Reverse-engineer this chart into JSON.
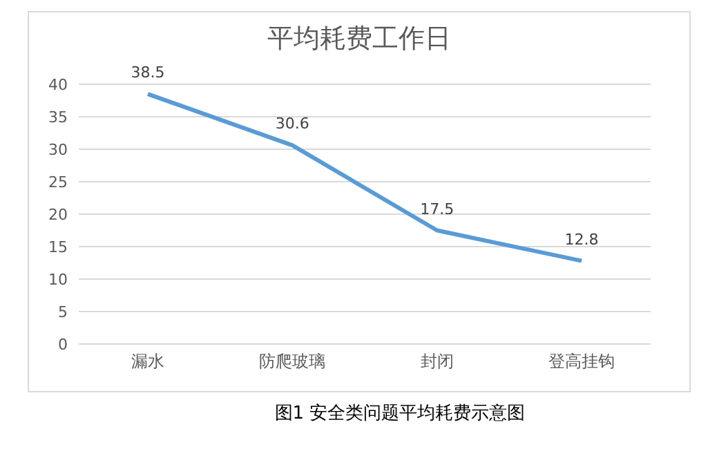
{
  "chart_data": {
    "type": "line",
    "title": "平均耗费工作日",
    "categories": [
      "漏水",
      "防爬玻璃",
      "封闭",
      "登高挂钩"
    ],
    "series": [
      {
        "color": "#5b9bd5",
        "values": [
          38.5,
          30.6,
          17.5,
          12.8
        ]
      }
    ],
    "ylim": [
      0,
      40
    ],
    "yticks": [
      0,
      5,
      10,
      15,
      20,
      25,
      30,
      35,
      40
    ],
    "grid": "y",
    "data_labels": true,
    "marker": "none",
    "line_style": "solid",
    "annotations": [
      "图1 安全类问题平均耗费示意图"
    ]
  }
}
